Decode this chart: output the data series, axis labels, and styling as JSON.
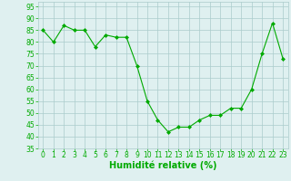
{
  "x": [
    0,
    1,
    2,
    3,
    4,
    5,
    6,
    7,
    8,
    9,
    10,
    11,
    12,
    13,
    14,
    15,
    16,
    17,
    18,
    19,
    20,
    21,
    22,
    23
  ],
  "y": [
    85,
    80,
    87,
    85,
    85,
    78,
    83,
    82,
    82,
    70,
    55,
    47,
    42,
    44,
    44,
    47,
    49,
    49,
    52,
    52,
    60,
    75,
    88,
    73
  ],
  "line_color": "#00aa00",
  "marker_color": "#00aa00",
  "bg_color": "#dff0f0",
  "grid_color": "#aacccc",
  "xlabel": "Humidité relative (%)",
  "ylim": [
    35,
    97
  ],
  "xlim": [
    -0.5,
    23.5
  ],
  "yticks": [
    35,
    40,
    45,
    50,
    55,
    60,
    65,
    70,
    75,
    80,
    85,
    90,
    95
  ],
  "xticks": [
    0,
    1,
    2,
    3,
    4,
    5,
    6,
    7,
    8,
    9,
    10,
    11,
    12,
    13,
    14,
    15,
    16,
    17,
    18,
    19,
    20,
    21,
    22,
    23
  ],
  "xlabel_fontsize": 7,
  "tick_fontsize": 5.5,
  "xlabel_color": "#00aa00",
  "tick_color": "#00aa00"
}
